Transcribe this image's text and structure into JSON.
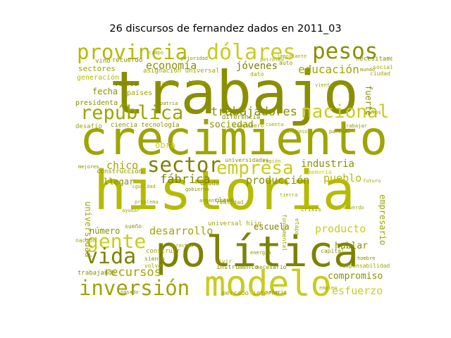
{
  "title": "26 discursos de fernandez dados en 2011_03",
  "palette": [
    "#b5bb00",
    "#9ea500",
    "#8a8f00",
    "#c8cc20",
    "#7c8200",
    "#aab000"
  ],
  "words": [
    {
      "text": "trabajo",
      "color": 2
    },
    {
      "text": "crecimiento",
      "color": 1
    },
    {
      "text": "historia",
      "color": 0
    },
    {
      "text": "política",
      "color": 4
    },
    {
      "text": "modelo",
      "color": 3
    },
    {
      "text": "provincia",
      "color": 0
    },
    {
      "text": "dólares",
      "color": 3
    },
    {
      "text": "pesos",
      "color": 2
    },
    {
      "text": "república",
      "color": 1
    },
    {
      "text": "nacional",
      "color": 3
    },
    {
      "text": "sector",
      "color": 4
    },
    {
      "text": "empresa",
      "color": 3
    },
    {
      "text": "inversión",
      "color": 1
    },
    {
      "text": "gente",
      "color": 3
    },
    {
      "text": "vida",
      "color": 4
    },
    {
      "text": "trabajadores",
      "color": 2
    },
    {
      "text": "educación",
      "color": 1
    },
    {
      "text": "economía",
      "color": 2
    },
    {
      "text": "jóvenes",
      "color": 4
    },
    {
      "text": "industria",
      "color": 2
    },
    {
      "text": "fábrica",
      "color": 4
    },
    {
      "text": "producción",
      "color": 2
    },
    {
      "text": "pueblo",
      "color": 0
    },
    {
      "text": "desarrollo",
      "color": 1
    },
    {
      "text": "producto",
      "color": 3
    },
    {
      "text": "compromiso",
      "color": 2
    },
    {
      "text": "recursos",
      "color": 1
    },
    {
      "text": "esfuerzo",
      "color": 3
    },
    {
      "text": "sociedad",
      "color": 2
    },
    {
      "text": "chico",
      "color": 1
    },
    {
      "text": "obra",
      "color": 3
    },
    {
      "text": "llegar",
      "color": 2
    },
    {
      "text": "universidad",
      "color": 1
    },
    {
      "text": "empresario",
      "color": 1
    },
    {
      "text": "hablar",
      "color": 2
    },
    {
      "text": "escuela",
      "color": 4
    },
    {
      "text": "número",
      "color": 2
    },
    {
      "text": "fuerte",
      "color": 2
    },
    {
      "text": "sectores",
      "color": 1
    },
    {
      "text": "fecha",
      "color": 2
    },
    {
      "text": "países",
      "color": 1
    },
    {
      "text": "ciencia tecnología",
      "color": 2
    },
    {
      "text": "asignación universal",
      "color": 1
    },
    {
      "text": "presidenta",
      "color": 2
    },
    {
      "text": "generación",
      "color": 0
    },
    {
      "text": "fuerza",
      "color": 4
    },
    {
      "text": "desafío",
      "color": 1
    },
    {
      "text": "construcción",
      "color": 2
    },
    {
      "text": "deuda",
      "color": 2
    },
    {
      "text": "clave",
      "color": 2
    },
    {
      "text": "universal hijo",
      "color": 1
    },
    {
      "text": "mercado interno",
      "color": 1
    },
    {
      "text": "instrumento",
      "color": 2
    },
    {
      "text": "necesitamos",
      "color": 2
    },
    {
      "text": "diferencia",
      "color": 2
    },
    {
      "text": "universidades",
      "color": 2
    },
    {
      "text": "memoria",
      "color": 3
    },
    {
      "text": "trabajando",
      "color": 2
    },
    {
      "text": "importante",
      "color": 1
    },
    {
      "text": "recuerdo",
      "color": 2
    },
    {
      "text": "vino",
      "color": 2
    },
    {
      "text": "ciudad",
      "color": 1
    },
    {
      "text": "dato",
      "color": 1
    },
    {
      "text": "auto",
      "color": 2
    },
    {
      "text": "social",
      "color": 1
    },
    {
      "text": "niños",
      "color": 1
    },
    {
      "text": "volver",
      "color": 1
    },
    {
      "text": "compañero",
      "color": 1
    },
    {
      "text": "crisis",
      "color": 2
    },
    {
      "text": "etapa",
      "color": 1
    },
    {
      "text": "realidad",
      "color": 1
    },
    {
      "text": "fundamental",
      "color": 1
    },
    {
      "text": "capital",
      "color": 2
    },
    {
      "text": "responsabilidad",
      "color": 1
    },
    {
      "text": "necesario",
      "color": 2
    },
    {
      "text": "construir",
      "color": 1
    },
    {
      "text": "sueño",
      "color": 2
    },
    {
      "text": "nación",
      "color": 1
    },
    {
      "text": "viento",
      "color": 1
    },
    {
      "text": "partido",
      "color": 2
    },
    {
      "text": "siento",
      "color": 2
    },
    {
      "text": "hombre",
      "color": 2
    },
    {
      "text": "vivir",
      "color": 1
    },
    {
      "text": "tierra",
      "color": 1
    },
    {
      "text": "mejores",
      "color": 2
    },
    {
      "text": "cuenta",
      "color": 1
    },
    {
      "text": "problema",
      "color": 1
    },
    {
      "text": "gobierno",
      "color": 2
    },
    {
      "text": "futuro",
      "color": 1
    },
    {
      "text": "trabajar",
      "color": 2
    },
    {
      "text": "campo",
      "color": 1
    },
    {
      "text": "región",
      "color": 1
    },
    {
      "text": "pasado",
      "color": 2
    },
    {
      "text": "derechos",
      "color": 1
    },
    {
      "text": "energía",
      "color": 2
    },
    {
      "text": "ayudar",
      "color": 1
    },
    {
      "text": "mundo",
      "color": 2
    },
    {
      "text": "tiempo",
      "color": 1
    },
    {
      "text": "empleo",
      "color": 1
    },
    {
      "text": "salario",
      "color": 2
    },
    {
      "text": "familia",
      "color": 1
    },
    {
      "text": "argentinos",
      "color": 2
    },
    {
      "text": "acuerdo",
      "color": 1
    },
    {
      "text": "prioridad",
      "color": 2
    },
    {
      "text": "petróleo",
      "color": 1
    },
    {
      "text": "patria",
      "color": 2
    },
    {
      "text": "igualdad",
      "color": 1
    },
    {
      "text": "ingreso",
      "color": 1
    }
  ]
}
